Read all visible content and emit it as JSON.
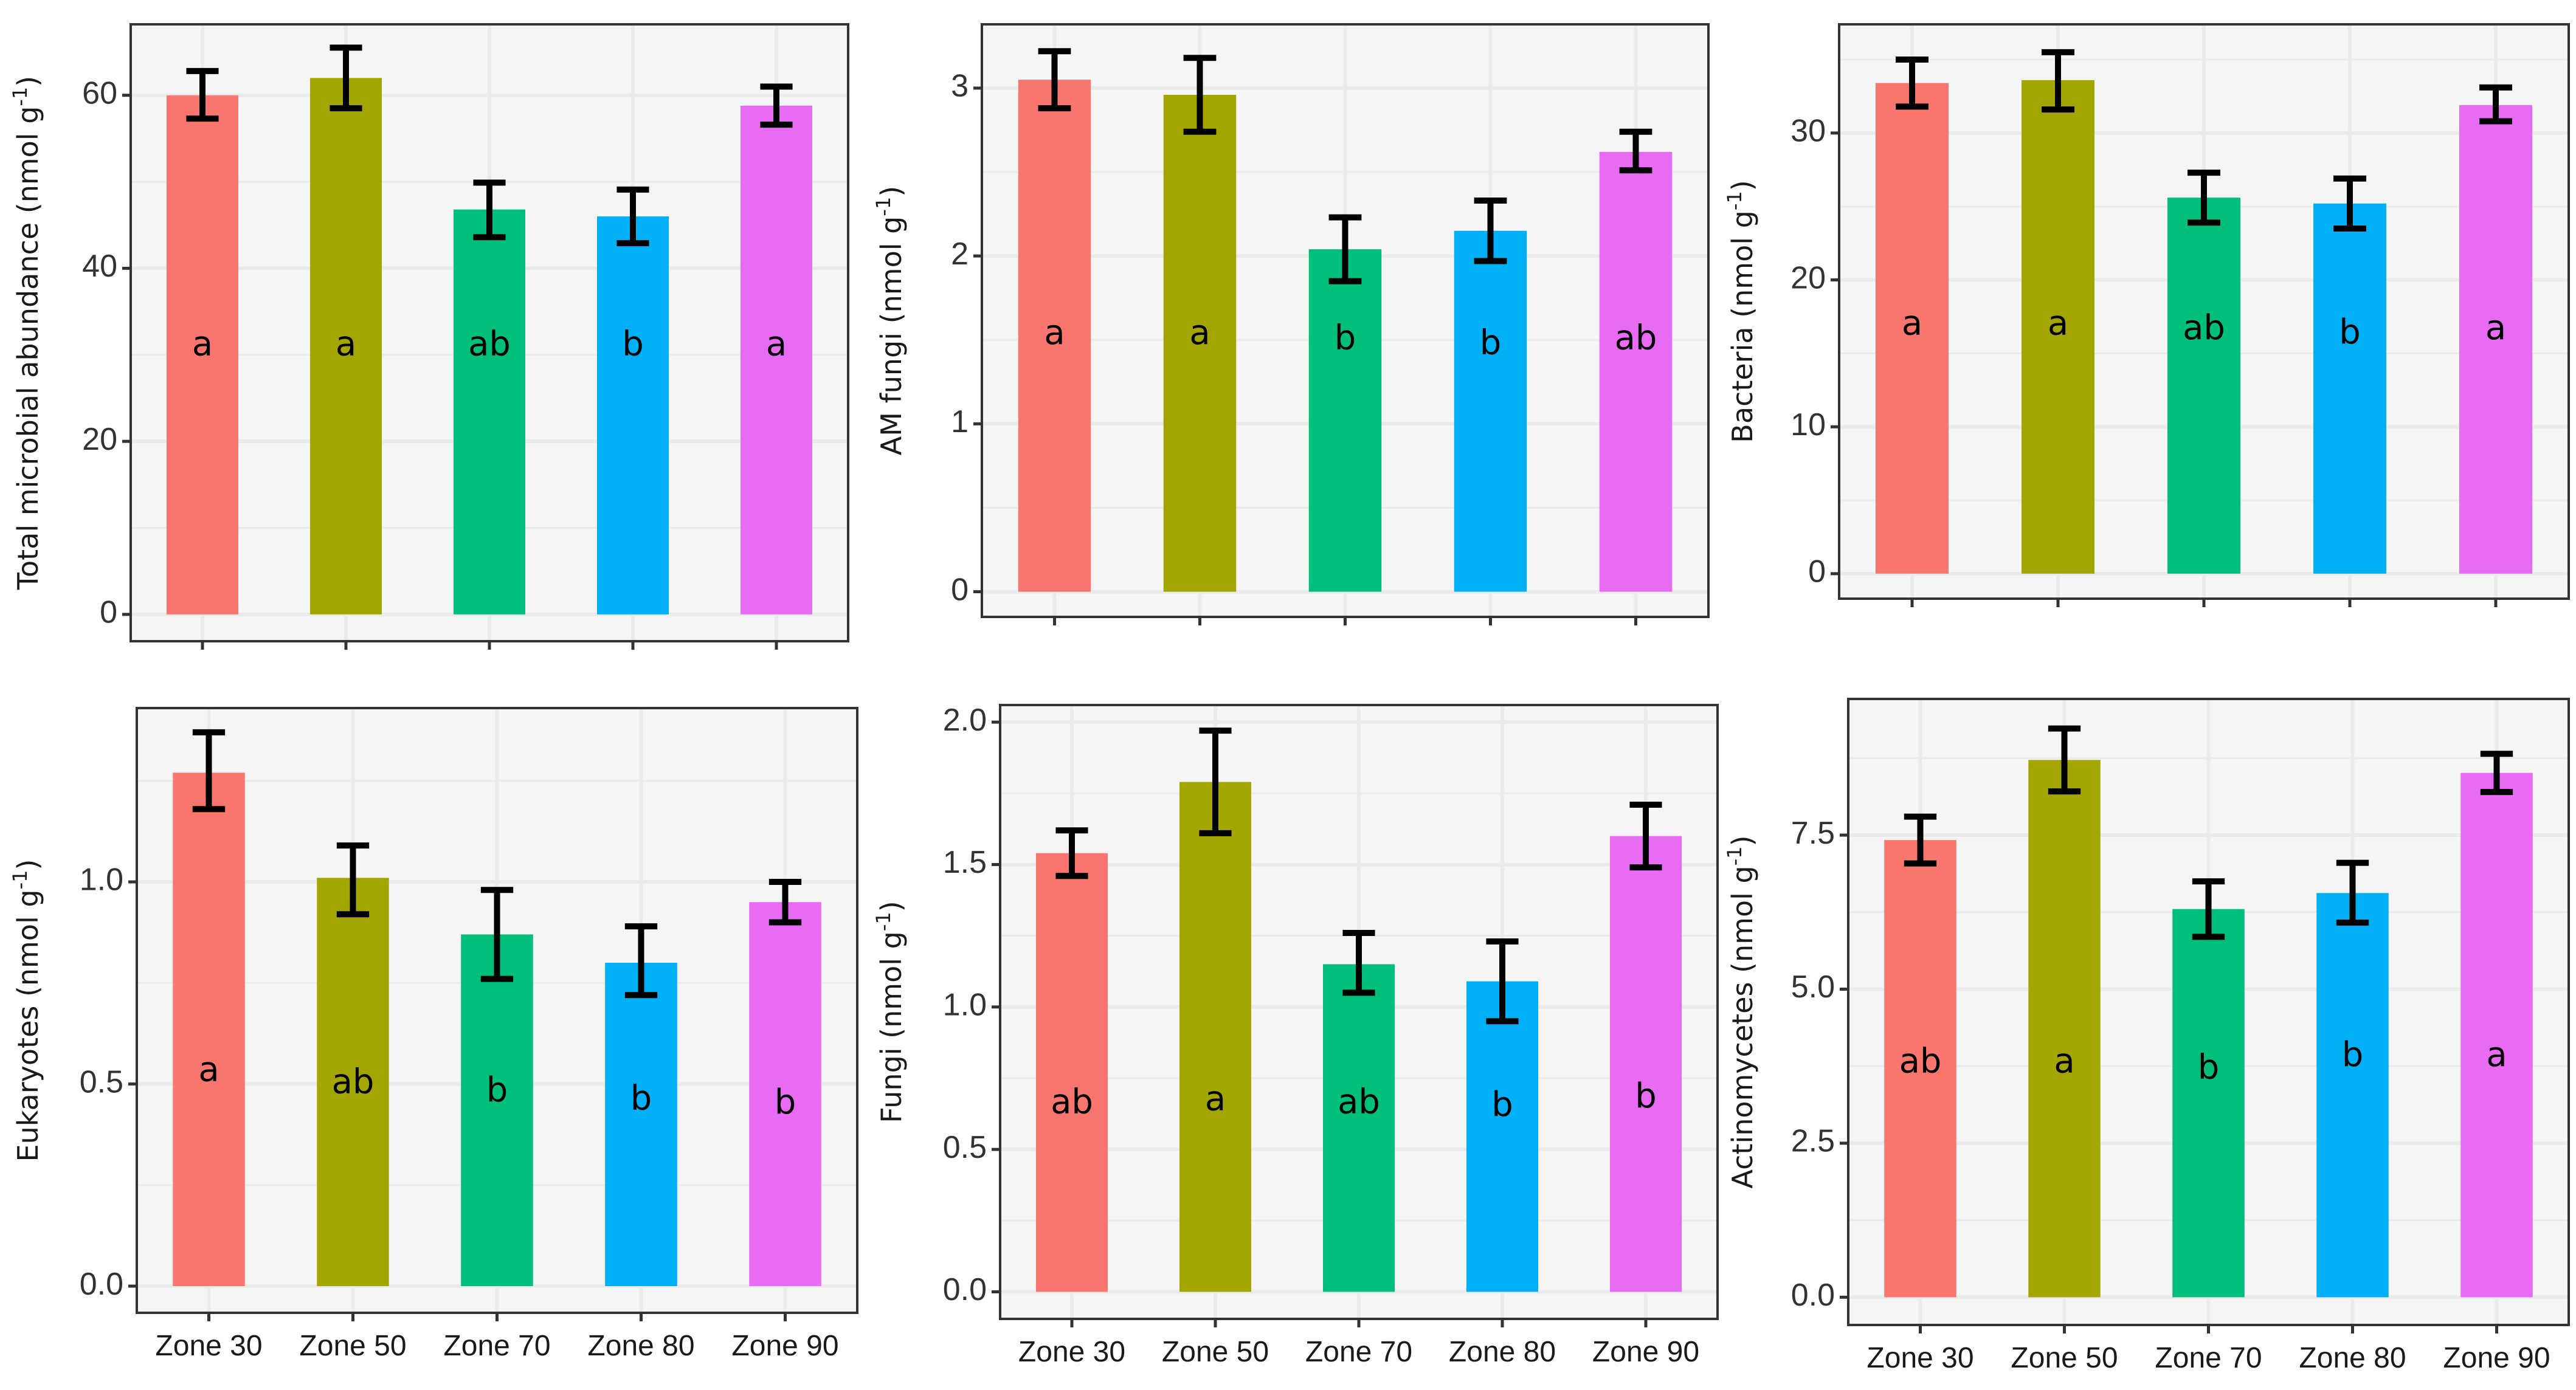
{
  "chart_data": [
    {
      "type": "bar",
      "ylabel": "Total microbial abundance (nmol g",
      "ylabel_sup": "-1",
      "ylabel_suffix": ")",
      "categories": [
        "Zone 30",
        "Zone 50",
        "Zone 70",
        "Zone 80",
        "Zone 90"
      ],
      "show_x_labels": false,
      "values": [
        60.0,
        62.0,
        46.8,
        46.0,
        58.8
      ],
      "error_low": [
        57.3,
        58.5,
        43.6,
        42.9,
        56.6
      ],
      "error_high": [
        62.8,
        65.5,
        49.9,
        49.1,
        61.0
      ],
      "letters": [
        "a",
        "a",
        "ab",
        "b",
        "a"
      ],
      "letter_y": [
        31,
        31,
        31,
        31,
        31
      ],
      "yticks": [
        "0",
        "20",
        "40",
        "60"
      ],
      "ytick_values": [
        0,
        20,
        40,
        60
      ],
      "ylim": [
        -3.1,
        68.2
      ],
      "minor_step": 10
    },
    {
      "type": "bar",
      "ylabel": "AM fungi  (nmol g",
      "ylabel_sup": "-1",
      "ylabel_suffix": ")",
      "categories": [
        "Zone 30",
        "Zone 50",
        "Zone 70",
        "Zone 80",
        "Zone 90"
      ],
      "show_x_labels": false,
      "values": [
        3.05,
        2.96,
        2.04,
        2.15,
        2.62
      ],
      "error_low": [
        2.88,
        2.74,
        1.85,
        1.97,
        2.51
      ],
      "error_high": [
        3.22,
        3.18,
        2.23,
        2.33,
        2.74
      ],
      "letters": [
        "a",
        "a",
        "b",
        "b",
        "ab"
      ],
      "letter_y": [
        1.53,
        1.53,
        1.5,
        1.47,
        1.5
      ],
      "yticks": [
        "0",
        "1",
        "2",
        "3"
      ],
      "ytick_values": [
        0,
        1,
        2,
        3
      ],
      "ylim": [
        -0.15,
        3.38
      ],
      "minor_step": 0.5
    },
    {
      "type": "bar",
      "ylabel": "Bacteria (nmol g",
      "ylabel_sup": "-1",
      "ylabel_suffix": ")",
      "categories": [
        "Zone 30",
        "Zone 50",
        "Zone 70",
        "Zone 80",
        "Zone 90"
      ],
      "show_x_labels": false,
      "values": [
        33.4,
        33.6,
        25.6,
        25.2,
        31.9
      ],
      "error_low": [
        31.8,
        31.6,
        23.9,
        23.5,
        30.8
      ],
      "error_high": [
        35.0,
        35.5,
        27.3,
        26.9,
        33.1
      ],
      "letters": [
        "a",
        "a",
        "ab",
        "b",
        "a"
      ],
      "letter_y": [
        16.9,
        16.9,
        16.6,
        16.3,
        16.6
      ],
      "yticks": [
        "0",
        "10",
        "20",
        "30"
      ],
      "ytick_values": [
        0,
        10,
        20,
        30
      ],
      "ylim": [
        -1.7,
        37.4
      ],
      "minor_step": 5
    },
    {
      "type": "bar",
      "ylabel": "Eukaryotes (nmol g",
      "ylabel_sup": "-1",
      "ylabel_suffix": ")",
      "categories": [
        "Zone 30",
        "Zone 50",
        "Zone 70",
        "Zone 80",
        "Zone 90"
      ],
      "show_x_labels": true,
      "values": [
        1.27,
        1.01,
        0.87,
        0.8,
        0.95
      ],
      "error_low": [
        1.18,
        0.92,
        0.76,
        0.72,
        0.9
      ],
      "error_high": [
        1.37,
        1.09,
        0.98,
        0.89,
        1.0
      ],
      "letters": [
        "a",
        "ab",
        "b",
        "b",
        "b"
      ],
      "letter_y": [
        0.53,
        0.5,
        0.48,
        0.46,
        0.45
      ],
      "yticks": [
        "0.0",
        "0.5",
        "1.0"
      ],
      "ytick_values": [
        0,
        0.5,
        1.0
      ],
      "ylim": [
        -0.066,
        1.43
      ],
      "minor_step": 0.25
    },
    {
      "type": "bar",
      "ylabel": "Fungi (nmol g",
      "ylabel_sup": "-1",
      "ylabel_suffix": ")",
      "categories": [
        "Zone 30",
        "Zone 50",
        "Zone 70",
        "Zone 80",
        "Zone 90"
      ],
      "show_x_labels": true,
      "values": [
        1.54,
        1.79,
        1.15,
        1.09,
        1.6
      ],
      "error_low": [
        1.46,
        1.61,
        1.05,
        0.95,
        1.49
      ],
      "error_high": [
        1.62,
        1.97,
        1.26,
        1.23,
        1.71
      ],
      "letters": [
        "ab",
        "a",
        "ab",
        "b",
        "b"
      ],
      "letter_y": [
        0.66,
        0.67,
        0.66,
        0.65,
        0.68
      ],
      "yticks": [
        "0.0",
        "0.5",
        "1.0",
        "1.5",
        "2.0"
      ],
      "ytick_values": [
        0,
        0.5,
        1.0,
        1.5,
        2.0
      ],
      "ylim": [
        -0.095,
        2.06
      ],
      "minor_step": 0.25
    },
    {
      "type": "bar",
      "ylabel": "Actinomycetes (nmol g",
      "ylabel_sup": "-1",
      "ylabel_suffix": ")",
      "categories": [
        "Zone 30",
        "Zone 50",
        "Zone 70",
        "Zone 80",
        "Zone 90"
      ],
      "show_x_labels": true,
      "values": [
        7.42,
        8.72,
        6.3,
        6.56,
        8.51
      ],
      "error_low": [
        7.04,
        8.21,
        5.85,
        6.08,
        8.2
      ],
      "error_high": [
        7.8,
        9.23,
        6.75,
        7.05,
        8.82
      ],
      "letters": [
        "ab",
        "a",
        "b",
        "b",
        "a"
      ],
      "letter_y": [
        3.8,
        3.8,
        3.7,
        3.9,
        3.9
      ],
      "yticks": [
        "0.0",
        "2.5",
        "5.0",
        "7.5"
      ],
      "ytick_values": [
        0,
        2.5,
        5.0,
        7.5
      ],
      "ylim": [
        -0.45,
        9.71
      ],
      "minor_step": 1.25
    }
  ],
  "colors": {
    "bars": [
      "#F8766D",
      "#A3A500",
      "#00BF7D",
      "#00B0F6",
      "#E76BF3"
    ],
    "panel_bg": "#F5F5F5",
    "grid": "#EBEBEB",
    "border": "#333333",
    "error": "#000000"
  }
}
